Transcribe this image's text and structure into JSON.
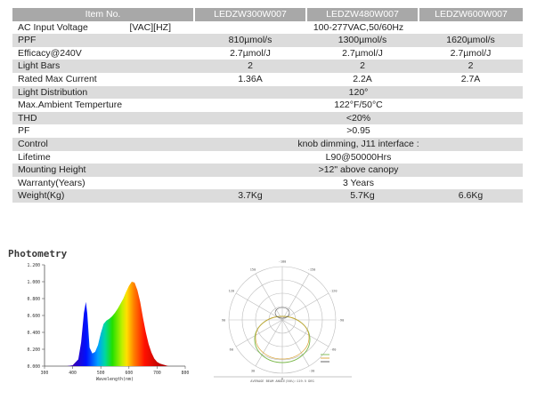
{
  "table": {
    "header": [
      "Item No.",
      "LEDZW300W007",
      "LEDZW480W007",
      "LEDZW600W007"
    ],
    "rows": [
      {
        "label": "AC Input Voltage",
        "unit": "[VAC][HZ]",
        "span": "100-277VAC,50/60Hz"
      },
      {
        "label": "PPF",
        "values": [
          "810µmol/s",
          "1300µmol/s",
          "1620µmol/s"
        ]
      },
      {
        "label": "Efficacy@240V",
        "values": [
          "2.7µmol/J",
          "2.7µmol/J",
          "2.7µmol/J"
        ]
      },
      {
        "label": "Light Bars",
        "values": [
          "2",
          "2",
          "2"
        ]
      },
      {
        "label": "Rated Max Current",
        "values": [
          "1.36A",
          "2.2A",
          "2.7A"
        ]
      },
      {
        "label": "Light Distribution",
        "span": "120°"
      },
      {
        "label": "Max.Ambient Temperture",
        "span": "122°F/50°C"
      },
      {
        "label": "THD",
        "span": "<20%"
      },
      {
        "label": "PF",
        "span": ">0.95"
      },
      {
        "label": "Control",
        "span": "knob dimming, J11 interface :"
      },
      {
        "label": "Lifetime",
        "span": "L90@50000Hrs"
      },
      {
        "label": "Mounting Height",
        "span": ">12\" above canopy"
      },
      {
        "label": "Warranty(Years)",
        "span": "3 Years"
      },
      {
        "label": "Weight(Kg)",
        "values": [
          "3.7Kg",
          "5.7Kg",
          "6.6Kg"
        ]
      }
    ]
  },
  "photometry": {
    "title": "Photometry"
  },
  "chart_data": [
    {
      "type": "area",
      "xlabel": "Wavelength(nm)",
      "ylabel": "",
      "xlim": [
        300,
        800
      ],
      "ylim": [
        0,
        1.2
      ],
      "x_ticks": [
        "300",
        "400",
        "500",
        "600",
        "700",
        "800"
      ],
      "y_ticks": [
        "0.000",
        "0.200",
        "0.400",
        "0.600",
        "0.800",
        "1.000",
        "1.200"
      ],
      "grid": false,
      "x": [
        380,
        400,
        420,
        430,
        440,
        447,
        452,
        460,
        470,
        480,
        490,
        500,
        510,
        520,
        530,
        540,
        550,
        560,
        570,
        580,
        590,
        600,
        610,
        620,
        630,
        640,
        650,
        660,
        670,
        680,
        690,
        700,
        710,
        720,
        730,
        740,
        760,
        780
      ],
      "y": [
        0.0,
        0.01,
        0.08,
        0.28,
        0.63,
        0.76,
        0.62,
        0.22,
        0.15,
        0.17,
        0.25,
        0.39,
        0.5,
        0.54,
        0.56,
        0.59,
        0.63,
        0.68,
        0.74,
        0.8,
        0.88,
        0.95,
        1.0,
        0.99,
        0.9,
        0.76,
        0.57,
        0.4,
        0.26,
        0.16,
        0.09,
        0.05,
        0.03,
        0.02,
        0.01,
        0.0,
        0.0,
        0.0
      ]
    },
    {
      "type": "polar",
      "angle_labels": [
        "-180",
        "-150",
        "-120",
        "-90",
        "-60",
        "-30",
        "0",
        "30",
        "60",
        "90",
        "120",
        "150"
      ],
      "footer": "AVERAGE BEAM ANGLE(50%):119.5 DEG"
    }
  ]
}
